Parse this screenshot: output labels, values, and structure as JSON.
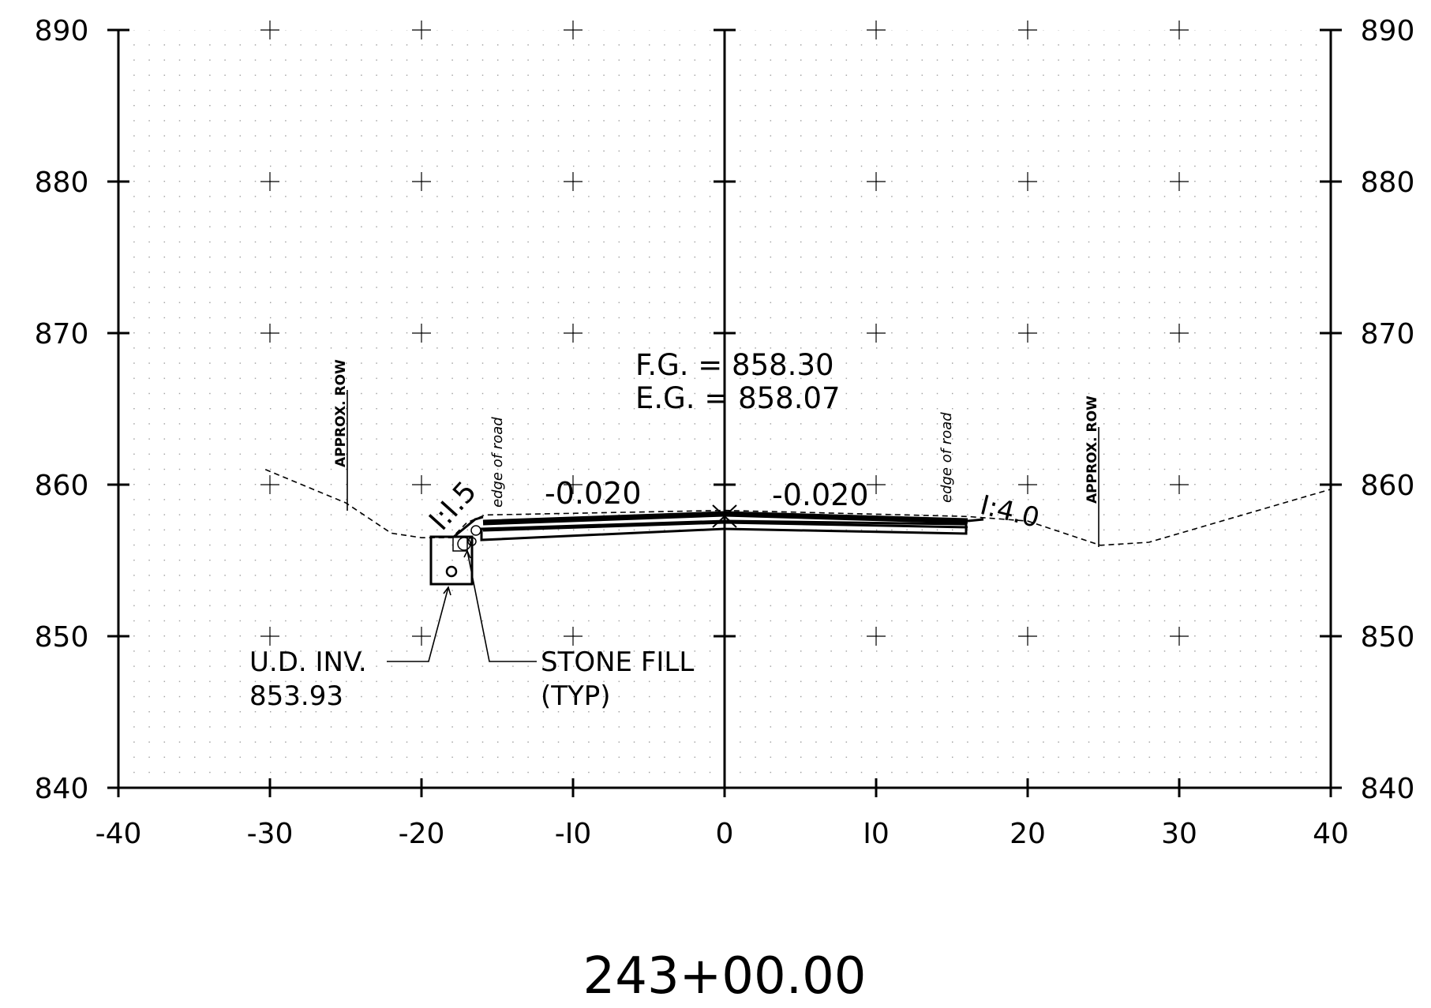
{
  "axes": {
    "x_ticks": [
      "-40",
      "-30",
      "-20",
      "-I0",
      "0",
      "I0",
      "20",
      "30",
      "40"
    ],
    "y_ticks": [
      "840",
      "850",
      "860",
      "870",
      "880",
      "890"
    ],
    "x_range": [
      -40,
      40
    ],
    "y_range": [
      840,
      890
    ],
    "grid": "dotted"
  },
  "station": "243+00.00",
  "grades": {
    "fg": "F.G. = 858.30",
    "eg": "E.G. = 858.07"
  },
  "slopes": {
    "left_cross": "-0.020",
    "right_cross": "-0.020",
    "left_side": "I:I.5",
    "right_side": "I:4.0"
  },
  "labels": {
    "edge_left": "edge of road",
    "edge_right": "edge of road",
    "row_left": "APPROX. ROW",
    "row_right": "APPROX. ROW",
    "ud_line1": "U.D. INV.",
    "ud_line2": "853.93",
    "stone_line1": "STONE FILL",
    "stone_line2": "(TYP)"
  },
  "profile": {
    "existing_ground": [
      [
        -30.3,
        861.0
      ],
      [
        -25,
        858.8
      ],
      [
        -22,
        856.8
      ],
      [
        -20,
        856.5
      ],
      [
        -18,
        856.5
      ],
      [
        -17,
        857.5
      ],
      [
        -15.8,
        858.0
      ],
      [
        0,
        858.3
      ],
      [
        16,
        857.9
      ],
      [
        20,
        857.6
      ],
      [
        24.8,
        856.0
      ],
      [
        28,
        856.2
      ],
      [
        40,
        859.7
      ]
    ]
  }
}
